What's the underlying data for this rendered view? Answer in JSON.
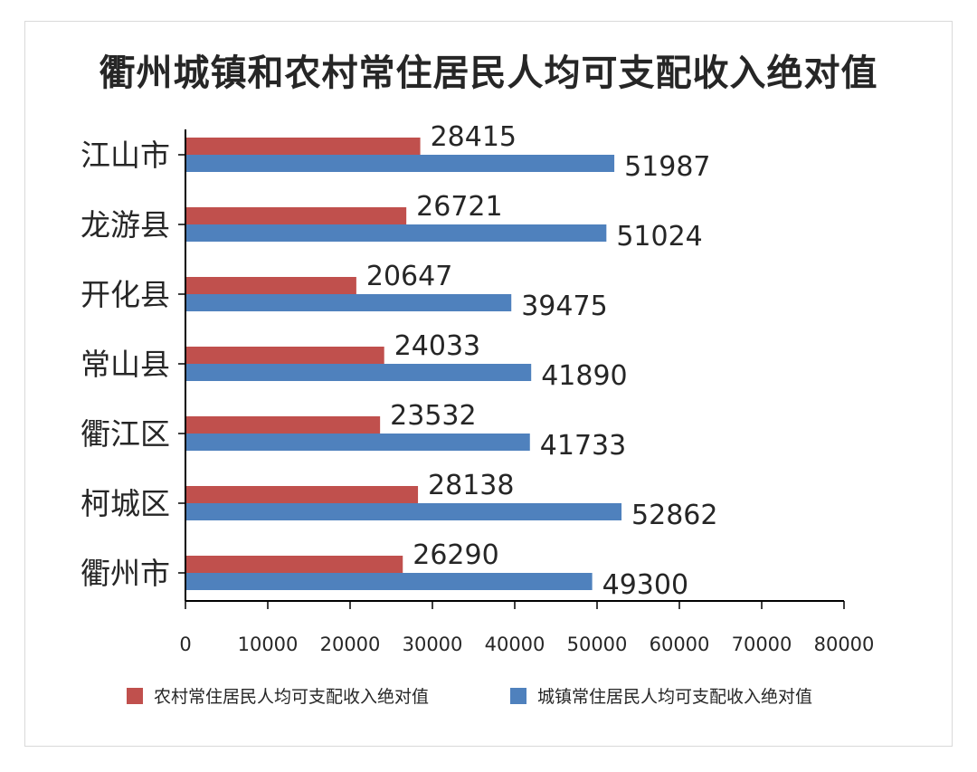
{
  "title": "衢州城镇和农村常住居民人均可支配收入绝对值",
  "chart_data": {
    "type": "bar",
    "orientation": "horizontal",
    "title": "衢州城镇和农村常住居民人均可支配收入绝对值",
    "categories": [
      "江山市",
      "龙游县",
      "开化县",
      "常山县",
      "衢江区",
      "柯城区",
      "衢州市"
    ],
    "series": [
      {
        "name": "农村常住居民人均可支配收入绝对值",
        "color": "#c0504d",
        "values": [
          28415,
          26721,
          20647,
          24033,
          23532,
          28138,
          26290
        ]
      },
      {
        "name": "城镇常住居民人均可支配收入绝对值",
        "color": "#4f81bd",
        "values": [
          51987,
          51024,
          39475,
          41890,
          41733,
          52862,
          49300
        ]
      }
    ],
    "xlim": [
      0,
      80000
    ],
    "xticks": [
      "0",
      "10000",
      "20000",
      "30000",
      "40000",
      "50000",
      "60000",
      "70000",
      "80000"
    ],
    "grid": false,
    "legend_position": "bottom",
    "data_labels": true
  }
}
